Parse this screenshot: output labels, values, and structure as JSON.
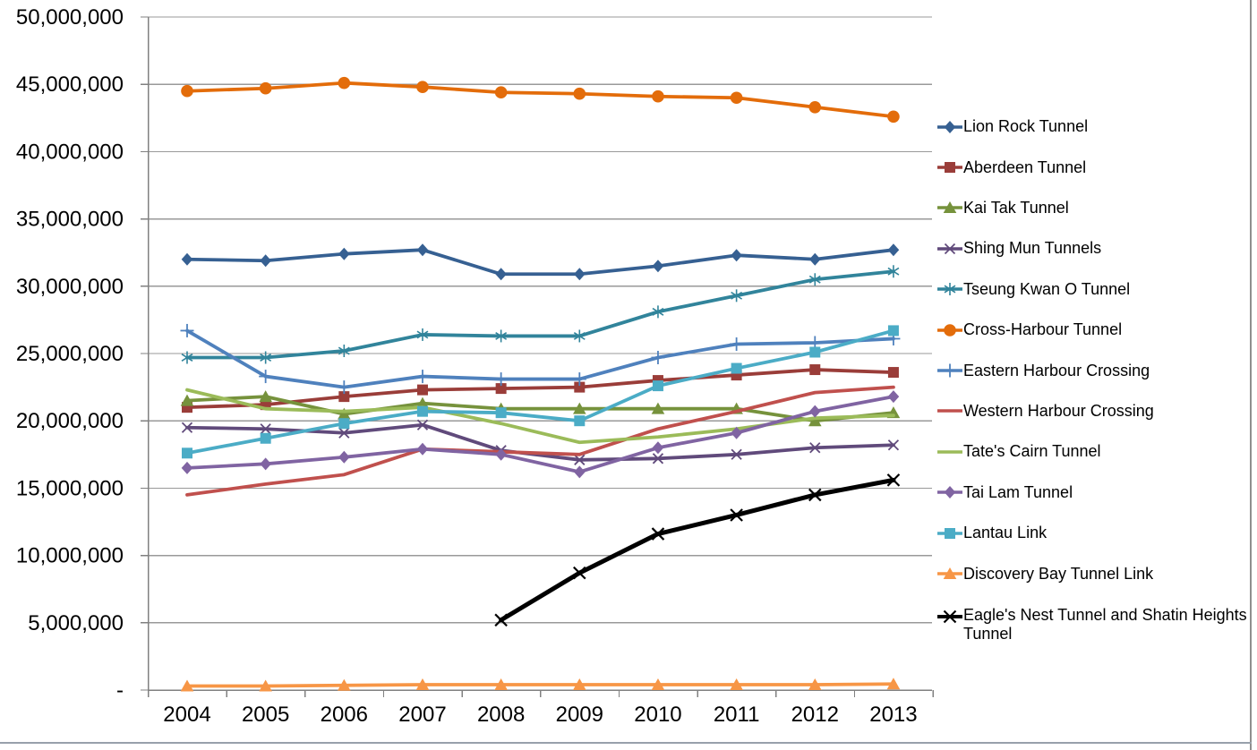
{
  "chart_data": {
    "type": "line",
    "title": "",
    "xlabel": "",
    "ylabel": "",
    "ylim": [
      0,
      50000000
    ],
    "ytick_step": 5000000,
    "grid": true,
    "legend_position": "right",
    "categories": [
      "2004",
      "2005",
      "2006",
      "2007",
      "2008",
      "2009",
      "2010",
      "2011",
      "2012",
      "2013"
    ],
    "ytick_labels": [
      "-",
      "5,000,000",
      "10,000,000",
      "15,000,000",
      "20,000,000",
      "25,000,000",
      "30,000,000",
      "35,000,000",
      "40,000,000",
      "45,000,000",
      "50,000,000"
    ],
    "series": [
      {
        "name": "Lion Rock Tunnel",
        "color": "#366092",
        "marker": "diamond",
        "values": [
          32000000,
          31900000,
          32400000,
          32700000,
          30900000,
          30900000,
          31500000,
          32300000,
          32000000,
          32700000
        ]
      },
      {
        "name": "Aberdeen Tunnel",
        "color": "#9a3d39",
        "marker": "square",
        "values": [
          21000000,
          21200000,
          21800000,
          22300000,
          22400000,
          22500000,
          23000000,
          23400000,
          23800000,
          23600000
        ]
      },
      {
        "name": "Kai Tak Tunnel",
        "color": "#76923c",
        "marker": "triangle",
        "values": [
          21500000,
          21800000,
          20500000,
          21300000,
          20900000,
          20900000,
          20900000,
          20900000,
          20000000,
          20600000
        ]
      },
      {
        "name": "Shing Mun Tunnels",
        "color": "#604a7b",
        "marker": "x",
        "values": [
          19500000,
          19400000,
          19100000,
          19700000,
          17800000,
          17100000,
          17200000,
          17500000,
          18000000,
          18200000
        ]
      },
      {
        "name": "Tseung Kwan O Tunnel",
        "color": "#31849b",
        "marker": "asterisk",
        "values": [
          24700000,
          24700000,
          25200000,
          26400000,
          26300000,
          26300000,
          28100000,
          29300000,
          30500000,
          31100000
        ]
      },
      {
        "name": "Cross-Harbour Tunnel",
        "color": "#e36c0a",
        "marker": "circle",
        "values": [
          44500000,
          44700000,
          45100000,
          44800000,
          44400000,
          44300000,
          44100000,
          44000000,
          43300000,
          42600000
        ]
      },
      {
        "name": "Eastern Harbour Crossing",
        "color": "#4f81bd",
        "marker": "plus",
        "values": [
          26700000,
          23300000,
          22500000,
          23300000,
          23100000,
          23100000,
          24700000,
          25700000,
          25800000,
          26100000
        ]
      },
      {
        "name": "Western Harbour Crossing",
        "color": "#c0504d",
        "marker": "none",
        "values": [
          14500000,
          15300000,
          16000000,
          17900000,
          17700000,
          17500000,
          19400000,
          20700000,
          22100000,
          22500000
        ]
      },
      {
        "name": "Tate's Cairn Tunnel",
        "color": "#9bbb59",
        "marker": "none",
        "values": [
          22300000,
          20900000,
          20700000,
          21000000,
          19800000,
          18400000,
          18800000,
          19400000,
          20200000,
          20400000
        ]
      },
      {
        "name": "Tai Lam Tunnel",
        "color": "#8064a2",
        "marker": "diamond",
        "values": [
          16500000,
          16800000,
          17300000,
          17900000,
          17500000,
          16200000,
          18000000,
          19100000,
          20700000,
          21800000
        ]
      },
      {
        "name": "Lantau Link",
        "color": "#4bacc6",
        "marker": "square",
        "values": [
          17600000,
          18700000,
          19800000,
          20700000,
          20600000,
          20000000,
          22600000,
          23900000,
          25100000,
          26700000
        ]
      },
      {
        "name": "Discovery Bay Tunnel Link",
        "color": "#f79646",
        "marker": "triangle",
        "values": [
          300000,
          300000,
          350000,
          400000,
          400000,
          400000,
          400000,
          400000,
          400000,
          450000
        ]
      },
      {
        "name": "Eagle's Nest Tunnel and Shatin Heights Tunnel",
        "color": "#000000",
        "marker": "x",
        "values": [
          null,
          null,
          null,
          null,
          5200000,
          8700000,
          11600000,
          13000000,
          14500000,
          15600000
        ]
      }
    ]
  },
  "frame": {
    "grid_color": "#999999",
    "axis_color": "#808080"
  }
}
